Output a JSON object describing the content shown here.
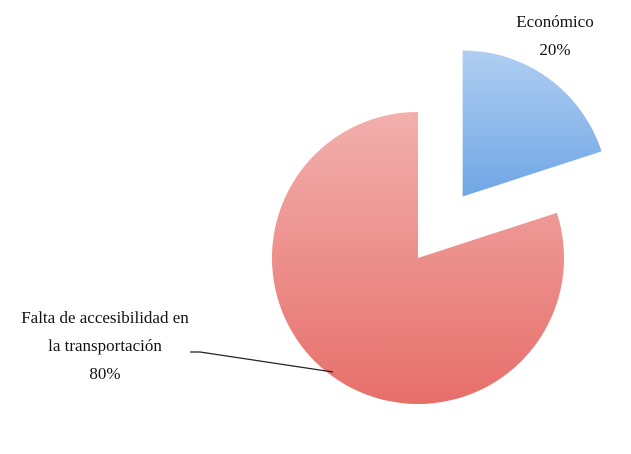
{
  "chart_data": {
    "type": "pie",
    "categories": [
      "Económico",
      "Falta de accesibilidad en la transportación"
    ],
    "values": [
      20,
      80
    ],
    "value_labels": [
      "20%",
      "80%"
    ],
    "colors": [
      "#6fa6e6",
      "#e76f6a"
    ],
    "explode": [
      true,
      false
    ]
  }
}
